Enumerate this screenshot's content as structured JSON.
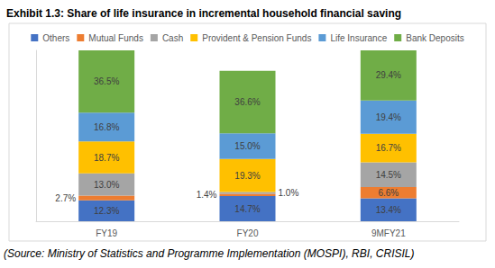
{
  "chart_data": {
    "type": "bar",
    "title": "Exhibit 1.3: Share of life insurance in incremental household financial saving",
    "annotations": [
      "(Source: Ministry of Statistics and Programme Implementation (MOSPI), RBI, CRISIL)"
    ],
    "categories": [
      "FY19",
      "FY20",
      "9MFY21"
    ],
    "series": [
      {
        "name": "Others",
        "color": "#4472c4",
        "values": [
          12.3,
          14.7,
          13.4
        ],
        "value_labels": [
          "12.3%",
          "14.7%",
          "13.4%"
        ]
      },
      {
        "name": "Mutual Funds",
        "color": "#ed7d31",
        "values": [
          2.7,
          1.4,
          6.6
        ],
        "value_labels": [
          "2.7%",
          "1.4%",
          "6.6%"
        ]
      },
      {
        "name": "Cash",
        "color": "#a5a5a5",
        "values": [
          13.0,
          1.0,
          14.5
        ],
        "value_labels": [
          "13.0%",
          "1.0%",
          "14.5%"
        ]
      },
      {
        "name": "Provident & Pension Funds",
        "color": "#ffc000",
        "values": [
          18.7,
          19.3,
          16.7
        ],
        "value_labels": [
          "18.7%",
          "19.3%",
          "16.7%"
        ]
      },
      {
        "name": "Life Insurance",
        "color": "#5b9bd5",
        "values": [
          16.8,
          15.0,
          19.4
        ],
        "value_labels": [
          "16.8%",
          "15.0%",
          "19.4%"
        ]
      },
      {
        "name": "Bank Deposits",
        "color": "#70ad47",
        "values": [
          36.5,
          36.6,
          29.4
        ],
        "value_labels": [
          "36.5%",
          "36.6%",
          "29.4%"
        ]
      }
    ],
    "ylim": [
      0,
      100
    ],
    "stacked": true,
    "data_labels": true,
    "grid": false,
    "legend": "top",
    "tick_labels": "x"
  }
}
